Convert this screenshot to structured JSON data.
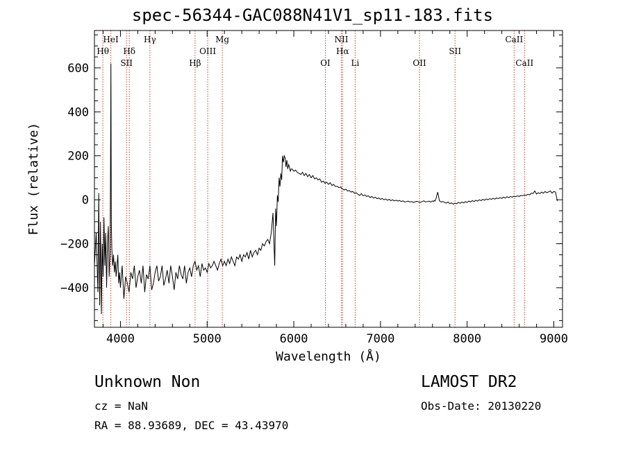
{
  "title": "spec-56344-GAC088N41V1_sp11-183.fits",
  "info": {
    "classification": "Unknown   Non",
    "survey": "LAMOST DR2",
    "cz": "cz = NaN",
    "obs_date": "Obs-Date: 20130220",
    "coords": "RA =  88.93689, DEC =  43.43970"
  },
  "chart_data": {
    "type": "line",
    "xlabel": "Wavelength (Å)",
    "ylabel": "Flux (relative)",
    "xlim": [
      3700,
      9100
    ],
    "ylim": [
      -580,
      770
    ],
    "x_ticks": [
      4000,
      5000,
      6000,
      7000,
      8000,
      9000
    ],
    "x_tick_labels": [
      "4000",
      "5000",
      "6000",
      "7000",
      "8000",
      "9000"
    ],
    "y_ticks": [
      -400,
      -200,
      0,
      200,
      400,
      600
    ],
    "y_tick_labels": [
      "−400",
      "−200",
      "0",
      "200",
      "400",
      "600"
    ],
    "grid": false,
    "line_color": "#000000",
    "marker_color": "#c0392b",
    "spectral_lines": [
      {
        "label": "Hθ",
        "wavelength": 3797,
        "row": 2
      },
      {
        "label": "HeI",
        "wavelength": 3889,
        "row": 1
      },
      {
        "label": "SII",
        "wavelength": 4070,
        "row": 3
      },
      {
        "label": "Hδ",
        "wavelength": 4102,
        "row": 2
      },
      {
        "label": "Hγ",
        "wavelength": 4340,
        "row": 1
      },
      {
        "label": "Hβ",
        "wavelength": 4861,
        "row": 3
      },
      {
        "label": "OIII",
        "wavelength": 5007,
        "row": 2
      },
      {
        "label": "Mg",
        "wavelength": 5175,
        "row": 1
      },
      {
        "label": "OI",
        "wavelength": 6364,
        "row": 3
      },
      {
        "label": "NII",
        "wavelength": 6548,
        "row": 1
      },
      {
        "label": "Hα",
        "wavelength": 6563,
        "row": 2
      },
      {
        "label": "Li",
        "wavelength": 6708,
        "row": 3
      },
      {
        "label": "OII",
        "wavelength": 7450,
        "row": 3
      },
      {
        "label": "SII",
        "wavelength": 7860,
        "row": 2
      },
      {
        "label": "CaII",
        "wavelength": 8542,
        "row": 1
      },
      {
        "label": "CaII",
        "wavelength": 8662,
        "row": 3
      }
    ],
    "series": [
      {
        "x": [
          3700,
          3720,
          3740,
          3750,
          3760,
          3770,
          3780,
          3790,
          3800,
          3810,
          3820,
          3830,
          3840,
          3850,
          3860,
          3870,
          3880,
          3885,
          3890,
          3895,
          3900,
          3910,
          3920,
          3930,
          3940,
          3950,
          3960,
          3970,
          3980,
          3990,
          4000,
          4020,
          4040,
          4060,
          4080,
          4100,
          4120,
          4140,
          4160,
          4180,
          4200,
          4220,
          4240,
          4260,
          4280,
          4300,
          4320,
          4340,
          4360,
          4380,
          4400,
          4420,
          4440,
          4460,
          4480,
          4500,
          4520,
          4540,
          4560,
          4580,
          4600,
          4620,
          4640,
          4660,
          4680,
          4700,
          4720,
          4740,
          4760,
          4780,
          4800,
          4820,
          4840,
          4860,
          4880,
          4900,
          4920,
          4940,
          4960,
          4980,
          5000,
          5020,
          5040,
          5060,
          5080,
          5100,
          5120,
          5140,
          5160,
          5180,
          5200,
          5220,
          5240,
          5260,
          5280,
          5300,
          5320,
          5340,
          5360,
          5380,
          5400,
          5420,
          5440,
          5460,
          5480,
          5500,
          5520,
          5540,
          5560,
          5580,
          5600,
          5620,
          5640,
          5660,
          5680,
          5700,
          5720,
          5740,
          5760,
          5780,
          5790,
          5800,
          5810,
          5820,
          5830,
          5840,
          5850,
          5860,
          5870,
          5880,
          5890,
          5900,
          5910,
          5920,
          5930,
          5940,
          5950,
          5960,
          5970,
          5980,
          6000,
          6020,
          6040,
          6060,
          6080,
          6100,
          6120,
          6140,
          6160,
          6180,
          6200,
          6220,
          6240,
          6260,
          6280,
          6300,
          6320,
          6340,
          6360,
          6380,
          6400,
          6420,
          6440,
          6460,
          6480,
          6500,
          6520,
          6540,
          6560,
          6580,
          6600,
          6620,
          6640,
          6660,
          6680,
          6700,
          6720,
          6740,
          6760,
          6780,
          6800,
          6820,
          6840,
          6860,
          6880,
          6900,
          6920,
          6940,
          6960,
          6980,
          7000,
          7020,
          7040,
          7060,
          7080,
          7100,
          7120,
          7140,
          7160,
          7180,
          7200,
          7220,
          7240,
          7260,
          7280,
          7300,
          7320,
          7340,
          7360,
          7380,
          7400,
          7420,
          7440,
          7460,
          7480,
          7500,
          7520,
          7540,
          7560,
          7580,
          7600,
          7610,
          7620,
          7630,
          7640,
          7660,
          7680,
          7700,
          7720,
          7740,
          7760,
          7780,
          7800,
          7820,
          7840,
          7860,
          7880,
          7900,
          7920,
          7940,
          7960,
          7980,
          8000,
          8020,
          8040,
          8060,
          8080,
          8100,
          8120,
          8140,
          8160,
          8180,
          8200,
          8220,
          8240,
          8260,
          8280,
          8300,
          8320,
          8340,
          8360,
          8380,
          8400,
          8420,
          8440,
          8460,
          8480,
          8500,
          8520,
          8540,
          8560,
          8580,
          8600,
          8620,
          8640,
          8660,
          8680,
          8700,
          8720,
          8740,
          8760,
          8780,
          8800,
          8820,
          8840,
          8860,
          8880,
          8900,
          8920,
          8940,
          8960,
          8980,
          9000,
          9020,
          9040
        ],
        "y": [
          -300,
          -150,
          -420,
          30,
          -480,
          -100,
          -520,
          -200,
          -350,
          -80,
          -300,
          -150,
          -400,
          -200,
          -120,
          -350,
          -250,
          100,
          620,
          -100,
          -220,
          -300,
          -250,
          -330,
          -280,
          -350,
          -300,
          -250,
          -380,
          -330,
          -400,
          -300,
          -450,
          -350,
          -380,
          -420,
          -330,
          -360,
          -300,
          -400,
          -350,
          -320,
          -380,
          -300,
          -420,
          -340,
          -360,
          -300,
          -410,
          -380,
          -330,
          -300,
          -370,
          -350,
          -300,
          -390,
          -360,
          -320,
          -380,
          -300,
          -350,
          -410,
          -330,
          -360,
          -300,
          -340,
          -360,
          -300,
          -380,
          -330,
          -310,
          -350,
          -300,
          -280,
          -320,
          -300,
          -350,
          -290,
          -320,
          -310,
          -330,
          -290,
          -310,
          -300,
          -280,
          -300,
          -320,
          -290,
          -270,
          -300,
          -280,
          -300,
          -270,
          -290,
          -260,
          -280,
          -300,
          -260,
          -270,
          -250,
          -280,
          -250,
          -260,
          -240,
          -270,
          -230,
          -260,
          -240,
          -230,
          -250,
          -220,
          -230,
          -200,
          -210,
          -190,
          -180,
          -200,
          -150,
          -60,
          -300,
          -40,
          -120,
          20,
          -10,
          100,
          60,
          120,
          90,
          200,
          170,
          200,
          190,
          150,
          180,
          140,
          160,
          150,
          130,
          140,
          140,
          130,
          135,
          125,
          120,
          115,
          125,
          110,
          120,
          105,
          115,
          100,
          110,
          95,
          100,
          90,
          95,
          80,
          85,
          75,
          80,
          70,
          78,
          65,
          70,
          60,
          62,
          55,
          58,
          50,
          45,
          48,
          40,
          42,
          35,
          38,
          30,
          32,
          25,
          20,
          28,
          18,
          22,
          15,
          18,
          10,
          15,
          8,
          12,
          5,
          8,
          2,
          6,
          0,
          4,
          -2,
          2,
          -4,
          0,
          -5,
          -2,
          -6,
          -3,
          -8,
          -5,
          -10,
          -8,
          -6,
          -10,
          -8,
          -12,
          -9,
          -7,
          -10,
          -12,
          -8,
          -5,
          -10,
          -8,
          -6,
          -10,
          -5,
          -8,
          -3,
          -6,
          5,
          35,
          -5,
          -10,
          -8,
          -12,
          -15,
          -10,
          -18,
          -14,
          -20,
          -15,
          -18,
          -12,
          -16,
          -10,
          -14,
          -8,
          -12,
          -6,
          -10,
          -4,
          -8,
          -2,
          -6,
          0,
          -4,
          2,
          -2,
          4,
          0,
          5,
          2,
          6,
          3,
          8,
          5,
          10,
          6,
          12,
          8,
          14,
          10,
          15,
          12,
          16,
          14,
          18,
          15,
          20,
          18,
          22,
          20,
          25,
          22,
          30,
          28,
          40,
          26,
          32,
          28,
          35,
          30,
          38,
          32,
          36,
          40,
          30,
          38,
          35,
          -5
        ]
      }
    ]
  }
}
